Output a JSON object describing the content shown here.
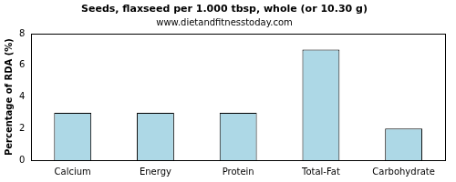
{
  "chart_data": {
    "type": "bar",
    "title": "Seeds, flaxseed per 1.000 tbsp, whole (or 10.30 g)",
    "subtitle": "www.dietandfitnesstoday.com",
    "y_label": "Percentage of RDA (%)",
    "categories": [
      "Calcium",
      "Energy",
      "Protein",
      "Total-Fat",
      "Carbohydrate"
    ],
    "values": [
      3,
      3,
      3,
      7,
      2
    ],
    "color": "#add8e6",
    "ylim": [
      0,
      8
    ],
    "yticks": [
      0,
      2,
      4,
      6,
      8
    ],
    "grid": false
  }
}
